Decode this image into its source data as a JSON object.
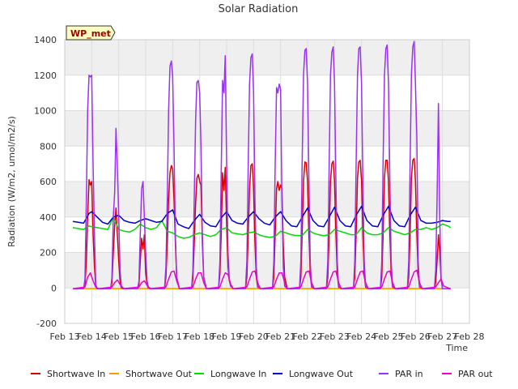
{
  "chart_data": {
    "type": "line",
    "title": "Solar Radiation",
    "xlabel": "Time",
    "ylabel": "Radiation (W/m2, umol/m2/s)",
    "station_label": "WP_met",
    "ylim": [
      -200,
      1400
    ],
    "yticks": [
      -200,
      0,
      200,
      400,
      600,
      800,
      1000,
      1200,
      1400
    ],
    "xlim": [
      0,
      15
    ],
    "xticks": [
      0,
      1,
      2,
      3,
      4,
      5,
      6,
      7,
      8,
      9,
      10,
      11,
      12,
      13,
      14,
      15
    ],
    "xtick_labels": [
      "Feb 13",
      "Feb 14",
      "Feb 15",
      "Feb 16",
      "Feb 17",
      "Feb 18",
      "Feb 19",
      "Feb 20",
      "Feb 21",
      "Feb 22",
      "Feb 23",
      "Feb 24",
      "Feb 25",
      "Feb 26",
      "Feb 27",
      "Feb 28"
    ],
    "grid": true,
    "legend_position": "bottom",
    "series": [
      {
        "name": "Shortwave In",
        "color": "#dd0000",
        "x": [
          0.3,
          0.7,
          0.75,
          0.8,
          0.85,
          0.9,
          0.95,
          1.0,
          1.05,
          1.1,
          1.15,
          1.2,
          1.25,
          1.3,
          1.7,
          1.75,
          1.8,
          1.85,
          1.9,
          1.95,
          2.0,
          2.05,
          2.1,
          2.2,
          2.7,
          2.75,
          2.8,
          2.85,
          2.9,
          2.95,
          3.0,
          3.05,
          3.1,
          3.2,
          3.7,
          3.75,
          3.8,
          3.85,
          3.9,
          3.95,
          4.0,
          4.05,
          4.1,
          4.15,
          4.25,
          4.7,
          4.75,
          4.8,
          4.85,
          4.9,
          4.95,
          5.0,
          5.05,
          5.1,
          5.15,
          5.25,
          5.7,
          5.75,
          5.8,
          5.85,
          5.9,
          5.95,
          6.0,
          6.05,
          6.1,
          6.15,
          6.25,
          6.7,
          6.75,
          6.8,
          6.85,
          6.9,
          6.95,
          7.0,
          7.05,
          7.1,
          7.15,
          7.25,
          7.7,
          7.75,
          7.8,
          7.85,
          7.9,
          7.95,
          8.0,
          8.05,
          8.1,
          8.15,
          8.25,
          8.7,
          8.75,
          8.8,
          8.85,
          8.9,
          8.95,
          9.0,
          9.05,
          9.1,
          9.15,
          9.25,
          9.7,
          9.75,
          9.8,
          9.85,
          9.9,
          9.95,
          10.0,
          10.05,
          10.1,
          10.15,
          10.25,
          10.7,
          10.75,
          10.8,
          10.85,
          10.9,
          10.95,
          11.0,
          11.05,
          11.1,
          11.15,
          11.25,
          11.7,
          11.75,
          11.8,
          11.85,
          11.9,
          11.95,
          12.0,
          12.05,
          12.1,
          12.15,
          12.25,
          12.7,
          12.75,
          12.8,
          12.85,
          12.9,
          12.95,
          13.0,
          13.05,
          13.1,
          13.15,
          13.25,
          13.7,
          13.75,
          13.8,
          13.85,
          13.9,
          13.95,
          14.0,
          14.3
        ],
        "y": [
          -5,
          -5,
          20,
          150,
          400,
          610,
          580,
          600,
          300,
          120,
          10,
          -5,
          -5,
          -5,
          -5,
          30,
          200,
          350,
          450,
          300,
          150,
          40,
          -5,
          -5,
          -5,
          20,
          150,
          280,
          220,
          300,
          80,
          20,
          -5,
          -5,
          -5,
          60,
          250,
          500,
          650,
          690,
          670,
          500,
          250,
          60,
          -5,
          -5,
          50,
          250,
          480,
          620,
          640,
          600,
          580,
          250,
          60,
          -5,
          -5,
          80,
          300,
          650,
          550,
          680,
          350,
          120,
          40,
          10,
          -5,
          -5,
          60,
          300,
          560,
          690,
          700,
          560,
          250,
          60,
          5,
          -5,
          -5,
          60,
          300,
          560,
          600,
          550,
          580,
          560,
          250,
          60,
          -5,
          -5,
          60,
          300,
          600,
          710,
          705,
          600,
          300,
          80,
          5,
          -5,
          -5,
          60,
          300,
          600,
          700,
          715,
          600,
          300,
          80,
          5,
          -5,
          -5,
          60,
          300,
          620,
          710,
          720,
          600,
          300,
          80,
          5,
          -5,
          -5,
          60,
          300,
          620,
          720,
          720,
          600,
          300,
          80,
          5,
          -5,
          -5,
          60,
          300,
          620,
          720,
          730,
          600,
          300,
          80,
          5,
          -5,
          -5,
          30,
          150,
          300,
          200,
          50,
          -5,
          -5
        ]
      },
      {
        "name": "Shortwave Out",
        "color": "#f0a000",
        "x": [
          0.3,
          14.3
        ],
        "y": [
          -5,
          -5
        ]
      },
      {
        "name": "Longwave In",
        "color": "#00dd00",
        "x": [
          0.3,
          0.5,
          0.7,
          0.9,
          1.0,
          1.2,
          1.4,
          1.6,
          1.8,
          2.0,
          2.2,
          2.4,
          2.6,
          2.8,
          3.0,
          3.2,
          3.4,
          3.6,
          3.8,
          4.0,
          4.2,
          4.4,
          4.6,
          4.8,
          5.0,
          5.2,
          5.4,
          5.6,
          5.8,
          6.0,
          6.2,
          6.4,
          6.6,
          6.8,
          7.0,
          7.2,
          7.4,
          7.6,
          7.8,
          8.0,
          8.2,
          8.4,
          8.6,
          8.8,
          9.0,
          9.2,
          9.4,
          9.6,
          9.8,
          10.0,
          10.2,
          10.4,
          10.6,
          10.8,
          11.0,
          11.2,
          11.4,
          11.6,
          11.8,
          12.0,
          12.2,
          12.4,
          12.6,
          12.8,
          13.0,
          13.2,
          13.4,
          13.6,
          13.8,
          14.0,
          14.2,
          14.3
        ],
        "y": [
          340,
          335,
          330,
          350,
          345,
          340,
          335,
          330,
          400,
          330,
          320,
          315,
          330,
          360,
          340,
          330,
          340,
          380,
          320,
          310,
          290,
          280,
          285,
          300,
          310,
          300,
          290,
          300,
          330,
          340,
          310,
          305,
          300,
          310,
          315,
          300,
          290,
          285,
          290,
          320,
          310,
          300,
          295,
          295,
          330,
          310,
          300,
          295,
          300,
          330,
          320,
          310,
          300,
          300,
          340,
          310,
          300,
          300,
          310,
          340,
          320,
          310,
          300,
          310,
          330,
          330,
          340,
          330,
          340,
          360,
          350,
          340
        ]
      },
      {
        "name": "Longwave Out",
        "color": "#0000cc",
        "x": [
          0.3,
          0.5,
          0.7,
          0.9,
          1.0,
          1.2,
          1.4,
          1.6,
          1.8,
          2.0,
          2.2,
          2.4,
          2.6,
          2.8,
          3.0,
          3.2,
          3.4,
          3.6,
          3.8,
          4.0,
          4.2,
          4.4,
          4.6,
          4.8,
          5.0,
          5.2,
          5.4,
          5.6,
          5.8,
          6.0,
          6.2,
          6.4,
          6.6,
          6.8,
          7.0,
          7.2,
          7.4,
          7.6,
          7.8,
          8.0,
          8.2,
          8.4,
          8.6,
          8.8,
          9.0,
          9.2,
          9.4,
          9.6,
          9.8,
          10.0,
          10.2,
          10.4,
          10.6,
          10.8,
          11.0,
          11.2,
          11.4,
          11.6,
          11.8,
          12.0,
          12.2,
          12.4,
          12.6,
          12.8,
          13.0,
          13.2,
          13.4,
          13.6,
          13.8,
          14.0,
          14.2,
          14.3
        ],
        "y": [
          375,
          370,
          365,
          420,
          430,
          400,
          370,
          360,
          400,
          410,
          380,
          370,
          365,
          380,
          390,
          380,
          370,
          375,
          420,
          440,
          360,
          345,
          335,
          380,
          415,
          370,
          350,
          345,
          395,
          430,
          380,
          365,
          360,
          400,
          430,
          390,
          365,
          355,
          400,
          430,
          380,
          350,
          345,
          400,
          450,
          380,
          350,
          345,
          400,
          455,
          380,
          350,
          345,
          410,
          460,
          380,
          350,
          345,
          410,
          460,
          380,
          350,
          345,
          410,
          455,
          380,
          365,
          365,
          370,
          380,
          375,
          375
        ]
      },
      {
        "name": "PAR in",
        "color": "#9933ee",
        "x": [
          0.3,
          0.7,
          0.75,
          0.8,
          0.85,
          0.9,
          0.95,
          1.0,
          1.05,
          1.1,
          1.15,
          1.2,
          1.3,
          1.7,
          1.75,
          1.8,
          1.85,
          1.9,
          1.95,
          2.0,
          2.05,
          2.1,
          2.2,
          2.7,
          2.75,
          2.8,
          2.85,
          2.9,
          2.95,
          3.0,
          3.05,
          3.1,
          3.2,
          3.7,
          3.75,
          3.8,
          3.85,
          3.9,
          3.95,
          4.0,
          4.05,
          4.1,
          4.15,
          4.25,
          4.7,
          4.75,
          4.8,
          4.85,
          4.9,
          4.95,
          5.0,
          5.05,
          5.1,
          5.15,
          5.25,
          5.7,
          5.75,
          5.8,
          5.85,
          5.9,
          5.95,
          6.0,
          6.05,
          6.1,
          6.15,
          6.25,
          6.7,
          6.75,
          6.8,
          6.85,
          6.9,
          6.95,
          7.0,
          7.05,
          7.1,
          7.15,
          7.25,
          7.7,
          7.75,
          7.8,
          7.85,
          7.9,
          7.95,
          8.0,
          8.05,
          8.1,
          8.15,
          8.25,
          8.7,
          8.75,
          8.8,
          8.85,
          8.9,
          8.95,
          9.0,
          9.05,
          9.1,
          9.15,
          9.25,
          9.7,
          9.75,
          9.8,
          9.85,
          9.9,
          9.95,
          10.0,
          10.05,
          10.1,
          10.15,
          10.25,
          10.7,
          10.75,
          10.8,
          10.85,
          10.9,
          10.95,
          11.0,
          11.05,
          11.1,
          11.15,
          11.25,
          11.7,
          11.75,
          11.8,
          11.85,
          11.9,
          11.95,
          12.0,
          12.05,
          12.1,
          12.15,
          12.25,
          12.7,
          12.75,
          12.8,
          12.85,
          12.9,
          12.95,
          13.0,
          13.05,
          13.1,
          13.15,
          13.25,
          13.7,
          13.75,
          13.8,
          13.85,
          13.9,
          13.95,
          14.0,
          14.3
        ],
        "y": [
          -5,
          -5,
          50,
          500,
          1000,
          1200,
          1190,
          1200,
          700,
          300,
          20,
          -5,
          -5,
          -5,
          60,
          400,
          540,
          900,
          680,
          400,
          100,
          10,
          -5,
          -5,
          40,
          300,
          560,
          600,
          400,
          200,
          40,
          5,
          -5,
          -5,
          120,
          500,
          1000,
          1250,
          1280,
          1200,
          800,
          300,
          60,
          -5,
          -5,
          100,
          500,
          950,
          1160,
          1170,
          1100,
          800,
          300,
          60,
          -5,
          -5,
          150,
          650,
          1170,
          1100,
          1310,
          700,
          200,
          50,
          10,
          -5,
          -5,
          150,
          700,
          1150,
          1300,
          1320,
          1100,
          500,
          120,
          10,
          -5,
          -5,
          150,
          700,
          1130,
          1100,
          1150,
          1120,
          500,
          120,
          10,
          -5,
          -5,
          150,
          700,
          1200,
          1340,
          1350,
          1150,
          600,
          150,
          10,
          -5,
          -5,
          150,
          700,
          1200,
          1330,
          1360,
          1150,
          600,
          150,
          10,
          -5,
          -5,
          150,
          700,
          1200,
          1350,
          1360,
          1150,
          600,
          150,
          10,
          -5,
          -5,
          150,
          700,
          1200,
          1350,
          1370,
          1150,
          600,
          150,
          10,
          -5,
          -5,
          150,
          700,
          1200,
          1360,
          1390,
          1150,
          850,
          150,
          10,
          -5,
          -5,
          100,
          500,
          1040,
          400,
          50,
          -5,
          -5
        ]
      },
      {
        "name": "PAR out",
        "color": "#ee00cc",
        "x": [
          0.3,
          0.75,
          0.85,
          0.95,
          1.05,
          1.15,
          1.25,
          1.75,
          1.85,
          1.95,
          2.05,
          2.15,
          2.75,
          2.85,
          2.95,
          3.05,
          3.15,
          3.75,
          3.85,
          3.95,
          4.05,
          4.15,
          4.25,
          4.75,
          4.85,
          4.95,
          5.05,
          5.15,
          5.25,
          5.75,
          5.85,
          5.95,
          6.05,
          6.15,
          6.25,
          6.75,
          6.85,
          6.95,
          7.05,
          7.15,
          7.25,
          7.75,
          7.85,
          7.95,
          8.05,
          8.15,
          8.25,
          8.75,
          8.85,
          8.95,
          9.05,
          9.15,
          9.25,
          9.75,
          9.85,
          9.95,
          10.05,
          10.15,
          10.25,
          10.75,
          10.85,
          10.95,
          11.05,
          11.15,
          11.25,
          11.75,
          11.85,
          11.95,
          12.05,
          12.15,
          12.25,
          12.75,
          12.85,
          12.95,
          13.05,
          13.15,
          13.25,
          13.75,
          13.85,
          13.95,
          14.05,
          14.3
        ],
        "y": [
          -5,
          5,
          60,
          85,
          40,
          5,
          -5,
          5,
          30,
          45,
          20,
          -5,
          5,
          30,
          40,
          15,
          -5,
          5,
          50,
          90,
          95,
          40,
          -5,
          5,
          50,
          85,
          85,
          30,
          -5,
          5,
          50,
          85,
          75,
          20,
          -5,
          5,
          50,
          90,
          95,
          30,
          -5,
          5,
          50,
          85,
          85,
          30,
          -5,
          5,
          50,
          90,
          95,
          30,
          -5,
          5,
          50,
          90,
          95,
          30,
          -5,
          5,
          50,
          90,
          95,
          30,
          -5,
          5,
          50,
          90,
          95,
          30,
          -5,
          5,
          50,
          90,
          100,
          30,
          -5,
          5,
          30,
          50,
          10,
          -5
        ]
      }
    ]
  }
}
